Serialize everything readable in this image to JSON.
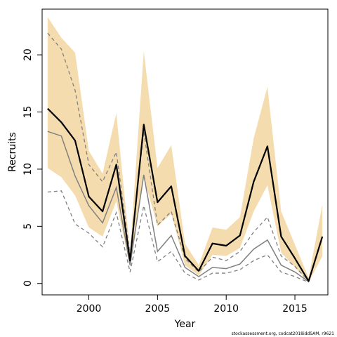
{
  "chart_data": {
    "type": "line",
    "title": "",
    "xlabel": "Year",
    "ylabel": "Recruits",
    "xlim": [
      1996.6,
      2017.4
    ],
    "ylim": [
      -1.0,
      24.0
    ],
    "x_ticks": [
      2000,
      2005,
      2010,
      2015
    ],
    "y_ticks": [
      0,
      5,
      10,
      15,
      20
    ],
    "grid": false,
    "legend": "none",
    "x": [
      1997,
      1998,
      1999,
      2000,
      2001,
      2002,
      2003,
      2004,
      2005,
      2006,
      2007,
      2008,
      2009,
      2010,
      2011,
      2012,
      2013,
      2014,
      2015,
      2016,
      2017
    ],
    "series": [
      {
        "role": "current-estimate",
        "color": "#000000",
        "values": [
          15.3,
          14.1,
          12.5,
          7.6,
          6.3,
          10.4,
          2.0,
          13.9,
          7.1,
          8.5,
          2.4,
          1.1,
          3.5,
          3.3,
          4.2,
          8.9,
          12.0,
          4.1,
          2.2,
          0.2,
          4.1
        ],
        "band_low": [
          10.1,
          9.3,
          7.7,
          4.9,
          4.1,
          7.2,
          1.4,
          9.3,
          5.0,
          6.1,
          1.6,
          0.7,
          2.5,
          2.4,
          3.1,
          6.3,
          8.6,
          2.7,
          1.4,
          0.1,
          2.4
        ],
        "band_high": [
          23.3,
          21.5,
          20.2,
          11.6,
          9.6,
          14.9,
          2.8,
          20.3,
          10.1,
          12.1,
          3.5,
          1.6,
          4.9,
          4.7,
          5.8,
          12.7,
          17.2,
          6.3,
          3.4,
          0.5,
          6.9
        ],
        "band_color": "#f5dcae"
      },
      {
        "role": "comparison-estimate",
        "color": "#808080",
        "values": [
          13.3,
          12.9,
          9.4,
          6.8,
          5.3,
          8.4,
          1.6,
          9.5,
          2.8,
          4.2,
          1.4,
          0.6,
          1.4,
          1.3,
          1.7,
          3.0,
          3.8,
          1.6,
          1.0,
          0.15,
          null
        ],
        "lower": [
          8.0,
          8.1,
          5.2,
          4.4,
          3.2,
          6.2,
          1.0,
          6.8,
          1.9,
          2.8,
          0.9,
          0.3,
          0.9,
          0.9,
          1.2,
          2.0,
          2.5,
          1.0,
          0.6,
          0.1,
          null
        ],
        "upper": [
          21.9,
          20.5,
          16.9,
          10.4,
          8.9,
          11.5,
          2.5,
          13.3,
          5.1,
          6.3,
          2.2,
          1.0,
          2.3,
          2.0,
          2.8,
          4.5,
          5.8,
          2.4,
          1.5,
          0.2,
          null
        ]
      }
    ],
    "annotations": [
      "stockassessment.org, codcat2018iddSAM, r9621"
    ]
  }
}
